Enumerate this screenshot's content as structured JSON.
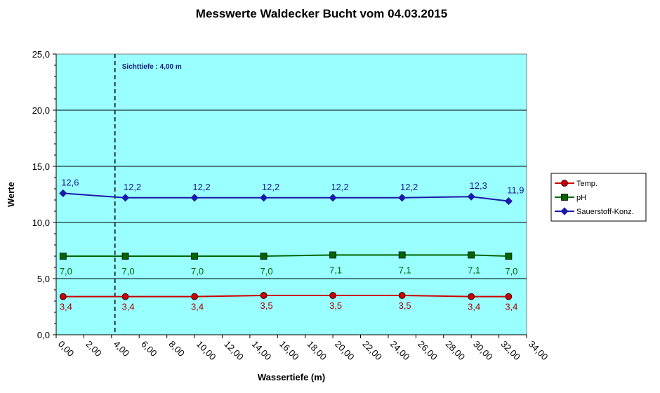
{
  "chart_data": {
    "type": "line",
    "title": "Messwerte Waldecker Bucht vom 04.03.2015",
    "xlabel": "Wassertiefe (m)",
    "ylabel": "Werte",
    "xlim": [
      0,
      34
    ],
    "ylim": [
      0,
      25
    ],
    "x_ticks": [
      "0,00",
      "2,00",
      "4,00",
      "6,00",
      "8,00",
      "10,00",
      "12,00",
      "14,00",
      "16,00",
      "18,00",
      "20,00",
      "22,00",
      "24,00",
      "26,00",
      "28,00",
      "30,00",
      "32,00",
      "34,00"
    ],
    "y_ticks": [
      "0,0",
      "5,0",
      "10,0",
      "15,0",
      "20,0",
      "25,0"
    ],
    "grid": "horizontal",
    "plot_background": "#99ffff",
    "legend_position": "right",
    "x": [
      0.5,
      5,
      10,
      15,
      20,
      25,
      30,
      32.7
    ],
    "series": [
      {
        "name": "Temp.",
        "color": "#cc0000",
        "label_color": "#aa0000",
        "marker": "circle",
        "values": [
          3.4,
          3.4,
          3.4,
          3.5,
          3.5,
          3.5,
          3.4,
          3.4
        ],
        "labels": [
          "3,4",
          "3,4",
          "3,4",
          "3,5",
          "3,5",
          "3,5",
          "3,4",
          "3,4"
        ]
      },
      {
        "name": "pH",
        "color": "#006600",
        "label_color": "#006600",
        "marker": "square",
        "values": [
          7.0,
          7.0,
          7.0,
          7.0,
          7.1,
          7.1,
          7.1,
          7.0
        ],
        "labels": [
          "7,0",
          "7,0",
          "7,0",
          "7,0",
          "7,1",
          "7,1",
          "7,1",
          "7,0"
        ]
      },
      {
        "name": "Sauerstoff-Konz.",
        "color": "#1a1aaa",
        "label_color": "#1a1a8a",
        "marker": "diamond",
        "values": [
          12.6,
          12.2,
          12.2,
          12.2,
          12.2,
          12.2,
          12.3,
          11.9
        ],
        "labels": [
          "12,6",
          "12,2",
          "12,2",
          "12,2",
          "12,2",
          "12,2",
          "12,3",
          "11,9"
        ]
      }
    ],
    "annotations": [
      {
        "text": "Sichttiefe : 4,00 m",
        "x": 4.25,
        "style": "dashed vertical line"
      }
    ]
  }
}
